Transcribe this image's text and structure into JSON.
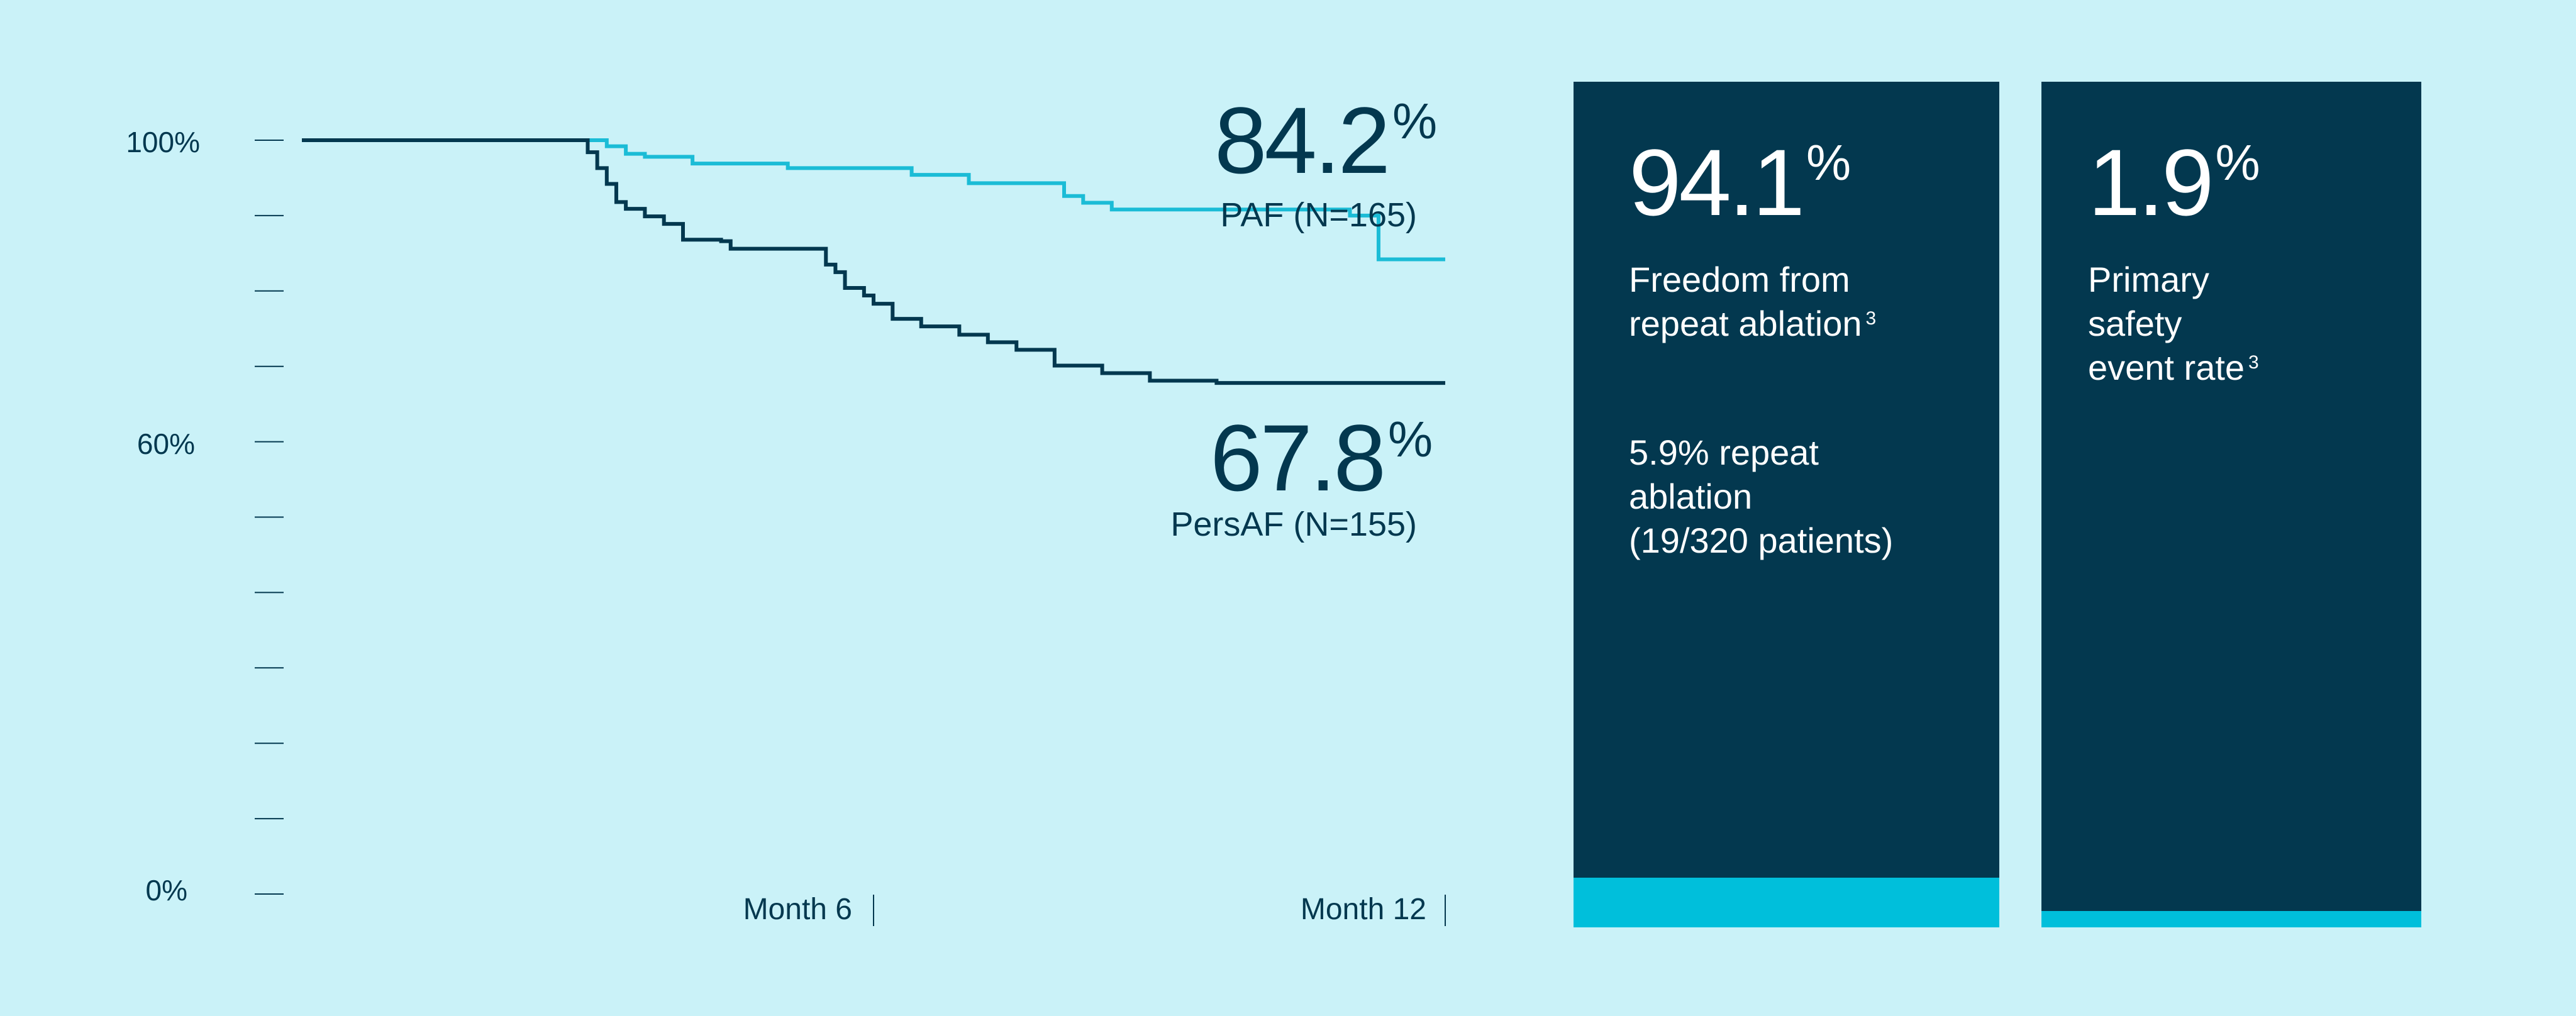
{
  "chart_data": {
    "type": "line",
    "style": "step",
    "x_axis": {
      "ticks": [
        {
          "x": 6,
          "label": "Month 6"
        },
        {
          "x": 12,
          "label": "Month 12"
        }
      ],
      "range": [
        0,
        12
      ]
    },
    "y_axis": {
      "range": [
        0,
        100
      ],
      "minor_step": 10,
      "labeled_ticks": [
        {
          "y": 100,
          "label": "100%"
        },
        {
          "y": 60,
          "label": "60%"
        },
        {
          "y": 0,
          "label": "0%"
        }
      ]
    },
    "grid": false,
    "series": [
      {
        "name": "PAF (N=165)",
        "color": "#1bbcd6",
        "final_value": "84.2",
        "final_suffix": "%",
        "points": [
          [
            0,
            100
          ],
          [
            3.2,
            100
          ],
          [
            3.2,
            99.2
          ],
          [
            3.4,
            99.2
          ],
          [
            3.4,
            98.2
          ],
          [
            3.6,
            98.2
          ],
          [
            3.6,
            97.8
          ],
          [
            4.1,
            97.8
          ],
          [
            4.1,
            96.9
          ],
          [
            5.1,
            96.9
          ],
          [
            5.1,
            96.3
          ],
          [
            6.4,
            96.3
          ],
          [
            6.4,
            95.4
          ],
          [
            7.0,
            95.4
          ],
          [
            7.0,
            94.3
          ],
          [
            8.0,
            94.3
          ],
          [
            8.0,
            92.6
          ],
          [
            8.2,
            92.6
          ],
          [
            8.2,
            91.7
          ],
          [
            8.5,
            91.7
          ],
          [
            8.5,
            90.8
          ],
          [
            11.0,
            90.8
          ],
          [
            11.0,
            90.0
          ],
          [
            11.3,
            90.0
          ],
          [
            11.3,
            84.2
          ],
          [
            12,
            84.2
          ]
        ]
      },
      {
        "name": "PersAF (N=155)",
        "color": "#03384f",
        "final_value": "67.8",
        "final_suffix": "%",
        "points": [
          [
            0,
            100
          ],
          [
            3.0,
            100
          ],
          [
            3.0,
            98.4
          ],
          [
            3.1,
            98.4
          ],
          [
            3.1,
            96.3
          ],
          [
            3.2,
            96.3
          ],
          [
            3.2,
            94.2
          ],
          [
            3.3,
            94.2
          ],
          [
            3.3,
            91.8
          ],
          [
            3.4,
            91.8
          ],
          [
            3.4,
            90.9
          ],
          [
            3.6,
            90.9
          ],
          [
            3.6,
            89.9
          ],
          [
            3.8,
            89.9
          ],
          [
            3.8,
            88.9
          ],
          [
            4.0,
            88.9
          ],
          [
            4.0,
            86.8
          ],
          [
            4.4,
            86.8
          ],
          [
            4.4,
            86.6
          ],
          [
            4.5,
            86.6
          ],
          [
            4.5,
            85.6
          ],
          [
            5.5,
            85.6
          ],
          [
            5.5,
            83.5
          ],
          [
            5.6,
            83.5
          ],
          [
            5.6,
            82.5
          ],
          [
            5.7,
            82.5
          ],
          [
            5.7,
            80.4
          ],
          [
            5.9,
            80.4
          ],
          [
            5.9,
            79.4
          ],
          [
            6.0,
            79.4
          ],
          [
            6.0,
            78.3
          ],
          [
            6.2,
            78.3
          ],
          [
            6.2,
            76.3
          ],
          [
            6.5,
            76.3
          ],
          [
            6.5,
            75.3
          ],
          [
            6.9,
            75.3
          ],
          [
            6.9,
            74.2
          ],
          [
            7.2,
            74.2
          ],
          [
            7.2,
            73.2
          ],
          [
            7.5,
            73.2
          ],
          [
            7.5,
            72.2
          ],
          [
            7.9,
            72.2
          ],
          [
            7.9,
            70.1
          ],
          [
            8.4,
            70.1
          ],
          [
            8.4,
            69.1
          ],
          [
            8.9,
            69.1
          ],
          [
            8.9,
            68.1
          ],
          [
            9.6,
            68.1
          ],
          [
            9.6,
            67.8
          ],
          [
            12,
            67.8
          ]
        ]
      }
    ]
  },
  "cards": [
    {
      "value": "94.1",
      "suffix": "%",
      "label_line1": "Freedom from",
      "label_line2": "repeat ablation",
      "superscript": "3",
      "note_line1": "5.9% repeat",
      "note_line2": "ablation",
      "note_line3": "(19/320 patients)",
      "accent_fraction": 0.059
    },
    {
      "value": "1.9",
      "suffix": "%",
      "label_line1": "Primary",
      "label_line2": "safety",
      "label_line3": "event rate",
      "superscript": "3",
      "accent_fraction": 0.019
    }
  ],
  "colors": {
    "background": "#caf2f8",
    "dark": "#03384f",
    "accent": "#00bfdb"
  }
}
